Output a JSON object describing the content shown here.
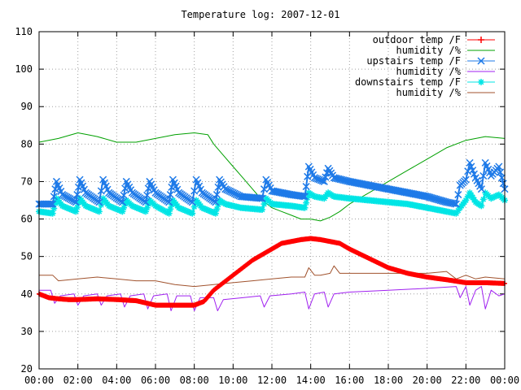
{
  "chart_data": {
    "type": "line",
    "title": "Temperature log: 2007-12-01",
    "xlabel": "",
    "ylabel": "",
    "ylim": [
      20,
      110
    ],
    "yticks": [
      20,
      30,
      40,
      50,
      60,
      70,
      80,
      90,
      100,
      110
    ],
    "xlim": [
      0,
      24
    ],
    "xticks": [
      "00:00",
      "02:00",
      "04:00",
      "06:00",
      "08:00",
      "10:00",
      "12:00",
      "14:00",
      "16:00",
      "18:00",
      "20:00",
      "22:00",
      "00:00"
    ],
    "grid": true,
    "legend_position": "top-right",
    "series": [
      {
        "name": "outdoor temp /F",
        "color": "#ff0000",
        "marker": "plus",
        "x": [
          0,
          0.5,
          1,
          1.5,
          2,
          3,
          4,
          5,
          6,
          7,
          8,
          8.5,
          9,
          9.5,
          10,
          10.5,
          11,
          11.5,
          12,
          12.5,
          13,
          13.5,
          14,
          14.5,
          15,
          15.5,
          16,
          17,
          18,
          19,
          20,
          21,
          22,
          23,
          24
        ],
        "y": [
          40,
          39,
          38.7,
          38.5,
          38.5,
          38.7,
          38.5,
          38.2,
          37,
          37,
          37,
          38,
          41,
          43,
          45,
          47,
          49,
          50.5,
          52,
          53.5,
          54,
          54.5,
          54.8,
          54.5,
          54,
          53.5,
          52,
          49.5,
          47,
          45.5,
          44.5,
          43.8,
          43,
          43,
          42.8
        ]
      },
      {
        "name": "humidity /%",
        "color": "#00a000",
        "marker": "none",
        "x": [
          0,
          1,
          2,
          2.5,
          3,
          4,
          5,
          6,
          7,
          8,
          8.7,
          9,
          9.5,
          10,
          10.5,
          11,
          11.5,
          12,
          12.5,
          13,
          13.5,
          14,
          14.5,
          15,
          15.5,
          16,
          16.5,
          17,
          18,
          19,
          20,
          21,
          22,
          23,
          24
        ],
        "y": [
          80.5,
          81.5,
          83,
          82.5,
          82,
          80.5,
          80.5,
          81.5,
          82.5,
          83,
          82.5,
          80,
          77,
          74,
          71,
          68,
          65,
          63,
          62,
          61,
          60,
          60,
          59.5,
          60.5,
          62,
          64,
          65.5,
          67,
          70,
          73,
          76,
          79,
          81,
          82,
          81.5
        ]
      },
      {
        "name": "upstairs temp /F",
        "color": "#1e7ae8",
        "marker": "x",
        "x": [
          0,
          0.7,
          0.9,
          1.2,
          1.9,
          2.1,
          2.4,
          3.1,
          3.3,
          3.6,
          4.3,
          4.5,
          4.8,
          5.5,
          5.7,
          6.0,
          6.7,
          6.9,
          7.2,
          7.9,
          8.1,
          8.4,
          9.1,
          9.3,
          9.6,
          10.4,
          11.5,
          11.7,
          12.0,
          13.0,
          13.7,
          13.9,
          14.2,
          14.7,
          14.9,
          15.2,
          16,
          17,
          18,
          19,
          20,
          21,
          21.5,
          21.7,
          22.0,
          22.2,
          22.5,
          22.8,
          23.0,
          23.3,
          23.7,
          24
        ],
        "y": [
          64,
          64,
          70,
          66.5,
          64.5,
          70.5,
          67,
          64.5,
          70.5,
          67,
          64.5,
          70,
          67,
          64.5,
          70,
          67,
          64.5,
          70.5,
          67,
          64.5,
          70.5,
          67,
          64.5,
          70.5,
          68,
          66,
          65.5,
          70.5,
          67.5,
          66.5,
          66,
          74,
          71,
          70,
          73.5,
          71,
          70,
          69,
          68,
          67,
          66,
          64.5,
          64,
          69,
          70.5,
          75,
          71,
          68,
          75,
          71.5,
          74,
          68
        ]
      },
      {
        "name": "humidity /%",
        "color": "#a020f0",
        "marker": "none",
        "x": [
          0,
          0.6,
          0.8,
          1.1,
          1.8,
          2.0,
          2.3,
          3.0,
          3.2,
          3.5,
          4.2,
          4.4,
          4.7,
          5.4,
          5.6,
          5.9,
          6.6,
          6.8,
          7.1,
          7.8,
          8.0,
          8.3,
          9.0,
          9.2,
          9.5,
          10.5,
          11.4,
          11.6,
          11.9,
          13.0,
          13.7,
          13.9,
          14.2,
          14.7,
          14.9,
          15.2,
          16,
          18,
          20,
          21.5,
          21.7,
          22.0,
          22.2,
          22.5,
          22.8,
          23.0,
          23.3,
          23.7,
          24
        ],
        "y": [
          41,
          41,
          37.5,
          39.5,
          40,
          37,
          39.5,
          40,
          37,
          39.5,
          40,
          36.5,
          39.5,
          40,
          36,
          39.5,
          40,
          35.5,
          39.5,
          39.5,
          35.5,
          39,
          39,
          35.5,
          38.5,
          39,
          39.5,
          36.5,
          39.5,
          40,
          40.5,
          36,
          40,
          40.5,
          36.5,
          40,
          40.5,
          41,
          41.5,
          42,
          39,
          42,
          37,
          41,
          42,
          36,
          41,
          39.5,
          40
        ]
      },
      {
        "name": "downstairs temp /F",
        "color": "#00e5e5",
        "marker": "star",
        "x": [
          0,
          0.7,
          0.9,
          1.2,
          1.9,
          2.1,
          2.4,
          3.1,
          3.3,
          3.6,
          4.3,
          4.5,
          4.8,
          5.5,
          5.7,
          6.0,
          6.7,
          6.9,
          7.2,
          7.9,
          8.1,
          8.4,
          9.1,
          9.3,
          9.6,
          10.4,
          11.5,
          11.7,
          12.0,
          13.0,
          13.7,
          13.9,
          14.2,
          14.7,
          14.9,
          15.2,
          16,
          17,
          18,
          19,
          20,
          21,
          21.5,
          21.7,
          22.0,
          22.2,
          22.5,
          22.8,
          23.0,
          23.3,
          23.7,
          24
        ],
        "y": [
          62,
          61.5,
          65.5,
          63.5,
          62,
          65.5,
          63.5,
          62,
          65.5,
          63.5,
          62,
          65,
          63.5,
          62,
          65,
          63.5,
          61.5,
          65,
          63,
          61.5,
          65,
          63,
          61.5,
          65,
          64,
          63,
          62.5,
          65.5,
          64,
          63.5,
          63,
          67,
          66,
          65.5,
          67,
          66,
          65.5,
          65,
          64.5,
          64,
          63,
          62,
          61.5,
          63,
          65,
          67,
          64.5,
          63.5,
          67,
          65.5,
          66.5,
          65
        ]
      },
      {
        "name": "humidity /%",
        "color": "#a0522d",
        "marker": "none",
        "x": [
          0,
          0.7,
          1,
          2,
          3,
          4,
          5,
          6,
          7,
          8,
          9,
          10,
          11,
          12,
          13,
          13.7,
          13.9,
          14.2,
          14.5,
          15,
          15.2,
          15.5,
          16,
          17,
          18,
          19,
          20,
          21,
          21.5,
          22,
          22.5,
          23,
          24
        ],
        "y": [
          45,
          45,
          43.5,
          44,
          44.5,
          44,
          43.5,
          43.5,
          42.5,
          42,
          42.5,
          43,
          43.5,
          44,
          44.5,
          44.5,
          47,
          45,
          45,
          45.5,
          47.5,
          45.5,
          45.5,
          45.5,
          45.5,
          45.5,
          45.5,
          46,
          44,
          45,
          44,
          44.5,
          44
        ]
      }
    ]
  }
}
